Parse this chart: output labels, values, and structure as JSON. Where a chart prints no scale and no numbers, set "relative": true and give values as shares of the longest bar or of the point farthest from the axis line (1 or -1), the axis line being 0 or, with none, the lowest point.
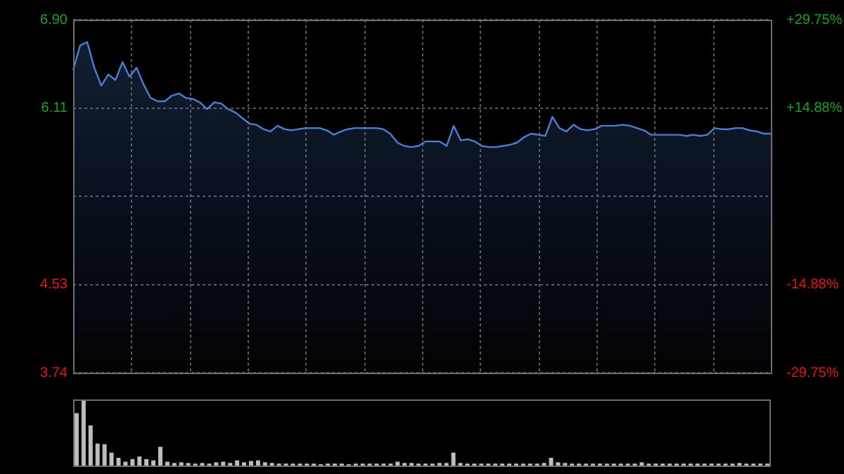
{
  "chart_data": [
    {
      "type": "area",
      "categories": [
        null,
        null,
        null,
        null,
        null,
        null,
        null,
        null,
        null,
        null,
        null,
        null,
        null,
        null,
        null,
        null,
        null,
        null,
        null,
        null,
        null,
        null,
        null,
        null,
        null,
        null,
        null,
        null,
        null,
        null,
        null,
        null,
        null,
        null,
        null,
        null,
        null,
        null,
        null,
        null,
        null,
        null,
        null,
        null,
        null,
        null,
        null,
        null,
        null,
        null,
        null,
        null,
        null,
        null,
        null,
        null,
        null,
        null,
        null,
        null,
        null,
        null,
        null,
        null,
        null,
        null,
        null,
        null,
        null,
        null,
        null,
        null,
        null,
        null,
        null,
        null,
        null,
        null,
        null,
        null,
        null,
        null,
        null,
        null,
        null,
        null,
        null,
        null,
        null,
        null,
        null,
        null,
        null,
        null,
        null,
        null,
        null,
        null,
        null,
        null
      ],
      "series": [
        {
          "color": "#4a7fd4",
          "values": [
            6.45,
            6.67,
            6.7,
            6.47,
            6.31,
            6.41,
            6.36,
            6.52,
            6.39,
            6.47,
            6.32,
            6.2,
            6.17,
            6.17,
            6.22,
            6.24,
            6.2,
            6.19,
            6.16,
            6.1,
            6.16,
            6.15,
            6.1,
            6.07,
            6.02,
            5.97,
            5.96,
            5.92,
            5.9,
            5.95,
            5.92,
            5.91,
            5.92,
            5.93,
            5.93,
            5.93,
            5.91,
            5.87,
            5.9,
            5.92,
            5.93,
            5.93,
            5.93,
            5.93,
            5.92,
            5.88,
            5.8,
            5.77,
            5.76,
            5.77,
            5.81,
            5.81,
            5.81,
            5.77,
            5.95,
            5.82,
            5.83,
            5.81,
            5.77,
            5.76,
            5.76,
            5.77,
            5.78,
            5.8,
            5.85,
            5.88,
            5.87,
            5.86,
            6.03,
            5.93,
            5.9,
            5.96,
            5.92,
            5.91,
            5.92,
            5.95,
            5.95,
            5.95,
            5.96,
            5.95,
            5.93,
            5.91,
            5.87,
            5.87,
            5.87,
            5.87,
            5.87,
            5.86,
            5.87,
            5.86,
            5.87,
            5.93,
            5.92,
            5.92,
            5.93,
            5.93,
            5.91,
            5.9,
            5.88,
            5.88
          ]
        }
      ],
      "ylim": [
        3.74,
        6.9
      ],
      "yticks": [
        3.74,
        4.53,
        {
          "value": 5.32,
          "label": null
        },
        6.11,
        {
          "value": 6.9,
          "label": "6.90"
        }
      ],
      "y2lim": [
        -29.75,
        29.75
      ],
      "y2ticks": [
        {
          "value": -29.75,
          "label": "-29.75%"
        },
        {
          "value": -14.88,
          "label": "-14.88%"
        },
        {
          "value": 0,
          "label": null
        },
        {
          "value": 14.88,
          "label": "+14.88%"
        },
        {
          "value": 29.75,
          "label": "+29.75%"
        }
      ],
      "grid": true,
      "legend": false,
      "tick_labels": "y"
    },
    {
      "type": "bar",
      "categories": [
        null,
        null,
        null,
        null,
        null,
        null,
        null,
        null,
        null,
        null,
        null,
        null,
        null,
        null,
        null,
        null,
        null,
        null,
        null,
        null,
        null,
        null,
        null,
        null,
        null,
        null,
        null,
        null,
        null,
        null,
        null,
        null,
        null,
        null,
        null,
        null,
        null,
        null,
        null,
        null,
        null,
        null,
        null,
        null,
        null,
        null,
        null,
        null,
        null,
        null,
        null,
        null,
        null,
        null,
        null,
        null,
        null,
        null,
        null,
        null,
        null,
        null,
        null,
        null,
        null,
        null,
        null,
        null,
        null,
        null,
        null,
        null,
        null,
        null,
        null,
        null,
        null,
        null,
        null,
        null,
        null,
        null,
        null,
        null,
        null,
        null,
        null,
        null,
        null,
        null,
        null,
        null,
        null,
        null,
        null,
        null,
        null,
        null,
        null,
        null
      ],
      "relative": true,
      "series": [
        {
          "color": "#bdbdbd",
          "values": [
            0.81,
            1.0,
            0.62,
            0.34,
            0.33,
            0.2,
            0.12,
            0.06,
            0.1,
            0.14,
            0.1,
            0.08,
            0.29,
            0.06,
            0.04,
            0.05,
            0.04,
            0.03,
            0.04,
            0.03,
            0.05,
            0.06,
            0.04,
            0.08,
            0.05,
            0.07,
            0.08,
            0.05,
            0.04,
            0.03,
            0.03,
            0.03,
            0.03,
            0.03,
            0.03,
            0.02,
            0.03,
            0.03,
            0.03,
            0.02,
            0.03,
            0.03,
            0.03,
            0.03,
            0.03,
            0.03,
            0.06,
            0.04,
            0.04,
            0.03,
            0.03,
            0.03,
            0.04,
            0.04,
            0.2,
            0.04,
            0.03,
            0.03,
            0.03,
            0.03,
            0.03,
            0.03,
            0.03,
            0.03,
            0.03,
            0.03,
            0.03,
            0.04,
            0.12,
            0.05,
            0.04,
            0.03,
            0.03,
            0.03,
            0.03,
            0.03,
            0.03,
            0.03,
            0.03,
            0.03,
            0.03,
            0.05,
            0.03,
            0.03,
            0.03,
            0.03,
            0.03,
            0.03,
            0.03,
            0.03,
            0.03,
            0.03,
            0.03,
            0.03,
            0.03,
            0.04,
            0.03,
            0.03,
            0.03,
            0.03
          ]
        }
      ],
      "legend": false
    }
  ]
}
